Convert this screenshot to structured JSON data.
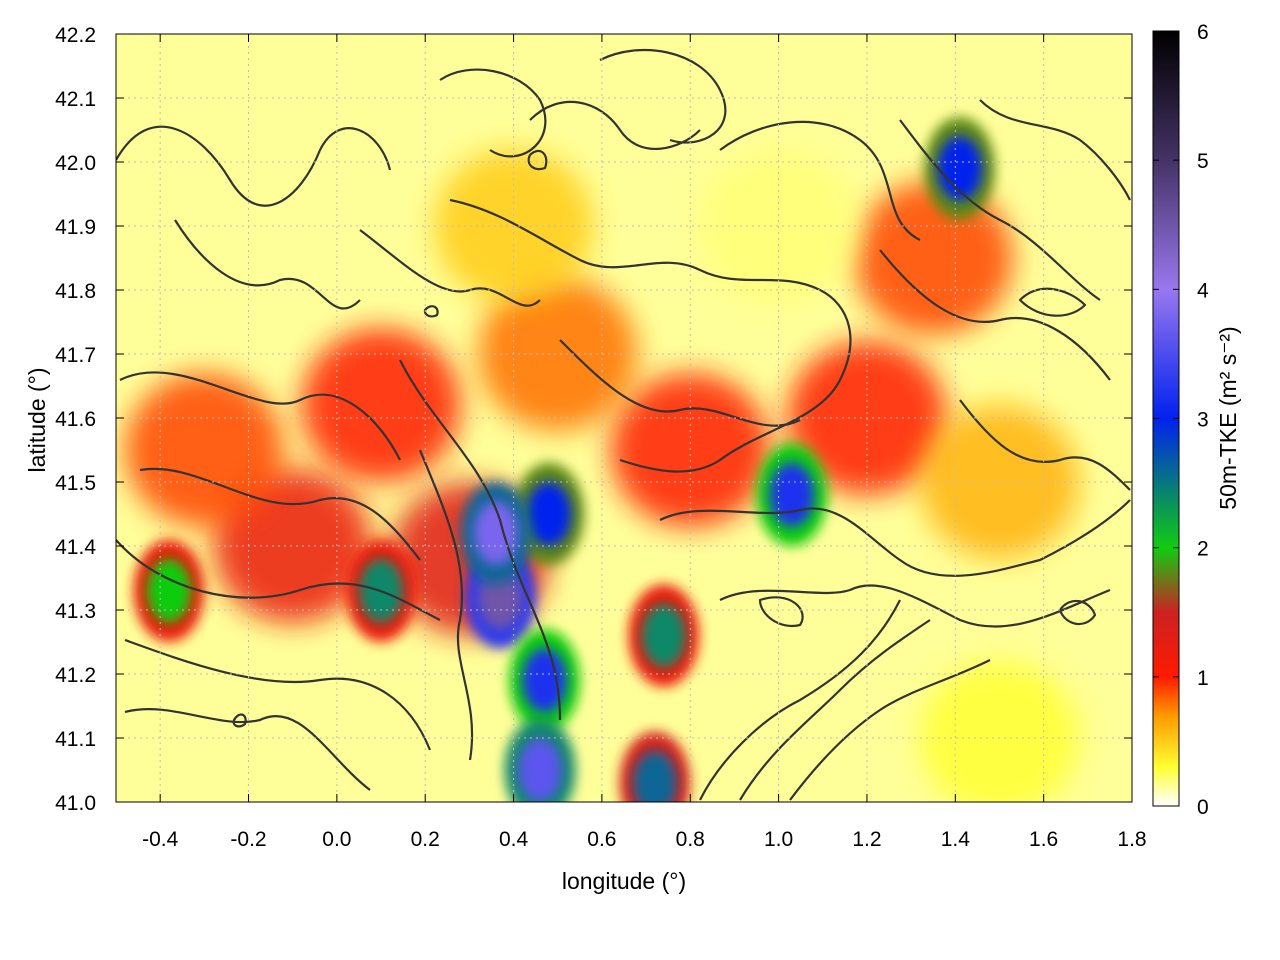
{
  "chart_data": {
    "type": "heatmap",
    "title": "",
    "xlabel": "longitude (°)",
    "ylabel": "latitude (°)",
    "xlim": [
      -0.5,
      1.8
    ],
    "ylim": [
      41.0,
      42.2
    ],
    "x_ticks": [
      -0.4,
      -0.2,
      0.0,
      0.2,
      0.4,
      0.6,
      0.8,
      1.0,
      1.2,
      1.4,
      1.6,
      1.8
    ],
    "x_tick_labels": [
      "-0.4",
      "-0.2",
      "0.0",
      "0.2",
      "0.4",
      "0.6",
      "0.8",
      "1.0",
      "1.2",
      "1.4",
      "1.6",
      "1.8"
    ],
    "y_ticks": [
      41.0,
      41.1,
      41.2,
      41.3,
      41.4,
      41.5,
      41.6,
      41.7,
      41.8,
      41.9,
      42.0,
      42.1,
      42.2
    ],
    "y_tick_labels": [
      "41.0",
      "41.1",
      "41.2",
      "41.3",
      "41.4",
      "41.5",
      "41.6",
      "41.7",
      "41.8",
      "41.9",
      "42.0",
      "42.1",
      "42.2"
    ],
    "grid": true,
    "overlay": "terrain contour lines (dark gray)",
    "colorbar": {
      "label": "50m-TKE (m² s⁻²)",
      "range": [
        0,
        6
      ],
      "ticks": [
        0,
        1,
        2,
        3,
        4,
        5,
        6
      ],
      "tick_labels": [
        "0",
        "1",
        "2",
        "3",
        "4",
        "5",
        "6"
      ],
      "colormap": [
        "#ffffff",
        "#ffff33",
        "#ff9900",
        "#ff1a00",
        "#cc2222",
        "#11cc11",
        "#0022ee",
        "#9977ee",
        "#443366",
        "#000000"
      ],
      "colormap_stops": [
        0,
        0.3,
        0.7,
        1.0,
        1.5,
        2.0,
        3.0,
        4.0,
        5.0,
        6.0
      ]
    },
    "hotspots": [
      {
        "lon": 0.48,
        "lat": 41.45,
        "tke": 3.0
      },
      {
        "lon": 0.37,
        "lat": 41.32,
        "tke": 4.5
      },
      {
        "lon": 0.36,
        "lat": 41.42,
        "tke": 3.8
      },
      {
        "lon": 0.47,
        "lat": 41.19,
        "tke": 3.2
      },
      {
        "lon": 0.46,
        "lat": 41.05,
        "tke": 3.6
      },
      {
        "lon": 0.72,
        "lat": 41.03,
        "tke": 2.6
      },
      {
        "lon": 1.03,
        "lat": 41.48,
        "tke": 3.2
      },
      {
        "lon": 1.41,
        "lat": 41.99,
        "tke": 3.0
      },
      {
        "lon": 0.1,
        "lat": 41.33,
        "tke": 2.4
      },
      {
        "lon": 0.74,
        "lat": 41.26,
        "tke": 2.4
      },
      {
        "lon": -0.38,
        "lat": 41.33,
        "tke": 2.0
      }
    ],
    "background_fields": [
      {
        "lon": 0.3,
        "lat": 41.38,
        "tke": 1.3
      },
      {
        "lon": -0.1,
        "lat": 41.4,
        "tke": 1.2
      },
      {
        "lon": 0.1,
        "lat": 41.62,
        "tke": 1.0
      },
      {
        "lon": 0.8,
        "lat": 41.55,
        "tke": 1.0
      },
      {
        "lon": 1.2,
        "lat": 41.6,
        "tke": 1.0
      },
      {
        "lon": 1.35,
        "lat": 41.85,
        "tke": 0.9
      },
      {
        "lon": 0.5,
        "lat": 41.7,
        "tke": 0.8
      },
      {
        "lon": -0.3,
        "lat": 41.55,
        "tke": 0.9
      },
      {
        "lon": 1.5,
        "lat": 41.5,
        "tke": 0.6
      },
      {
        "lon": 0.4,
        "lat": 41.9,
        "tke": 0.5
      },
      {
        "lon": 1.0,
        "lat": 41.9,
        "tke": 0.2
      },
      {
        "lon": 1.5,
        "lat": 41.1,
        "tke": 0.3
      }
    ]
  }
}
